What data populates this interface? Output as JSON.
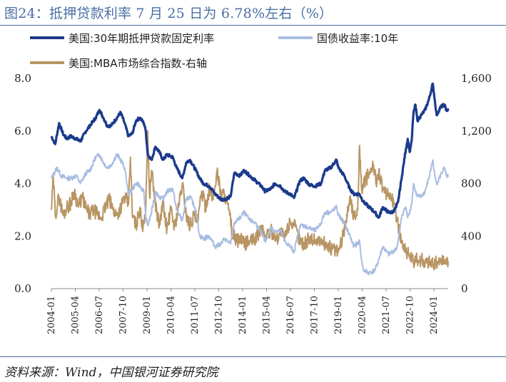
{
  "header": {
    "title": "图24：抵押贷款利率 7 月 25 日为 6.78%左右（%）"
  },
  "footer": {
    "source": "资料来源：Wind，中国银河证券研究院"
  },
  "colors": {
    "mortgage": "#1a3a8c",
    "treasury": "#a9bde2",
    "mba": "#b89563",
    "accent": "#4a6fa5"
  },
  "chart_data": {
    "type": "line",
    "title": "抵押贷款利率 7 月 25 日为 6.78%左右（%）",
    "x_ticks": [
      "2004-01",
      "2005-04",
      "2006-07",
      "2007-10",
      "2009-01",
      "2010-04",
      "2011-07",
      "2012-10",
      "2014-01",
      "2015-04",
      "2016-07",
      "2017-10",
      "2019-01",
      "2020-04",
      "2021-07",
      "2022-10",
      "2024-01"
    ],
    "x_range": [
      2004.0,
      2024.6
    ],
    "y_left": {
      "ticks": [
        "0.0",
        "2.0",
        "4.0",
        "6.0",
        "8.0"
      ],
      "range": [
        0,
        8
      ]
    },
    "y_right": {
      "ticks": [
        "0",
        "400",
        "800",
        "1,200",
        "1,600"
      ],
      "range": [
        0,
        1600
      ]
    },
    "legend": [
      "美国:30年期抵押贷款固定利率",
      "国债收益率:10年",
      "美国:MBA市场综合指数-右轴"
    ],
    "series": [
      {
        "name": "美国:30年期抵押贷款固定利率",
        "axis": "left",
        "points": [
          [
            2004.0,
            5.8
          ],
          [
            2004.2,
            5.5
          ],
          [
            2004.4,
            6.3
          ],
          [
            2004.6,
            5.9
          ],
          [
            2004.8,
            5.7
          ],
          [
            2005.0,
            5.8
          ],
          [
            2005.3,
            5.7
          ],
          [
            2005.5,
            5.6
          ],
          [
            2005.8,
            6.0
          ],
          [
            2006.0,
            6.2
          ],
          [
            2006.3,
            6.5
          ],
          [
            2006.5,
            6.8
          ],
          [
            2006.7,
            6.5
          ],
          [
            2006.9,
            6.2
          ],
          [
            2007.1,
            6.2
          ],
          [
            2007.4,
            6.5
          ],
          [
            2007.6,
            6.7
          ],
          [
            2007.8,
            6.3
          ],
          [
            2008.0,
            5.8
          ],
          [
            2008.2,
            5.9
          ],
          [
            2008.4,
            6.4
          ],
          [
            2008.6,
            6.5
          ],
          [
            2008.8,
            6.3
          ],
          [
            2008.9,
            6.0
          ],
          [
            2009.0,
            5.1
          ],
          [
            2009.2,
            4.9
          ],
          [
            2009.4,
            5.4
          ],
          [
            2009.6,
            5.2
          ],
          [
            2009.8,
            4.9
          ],
          [
            2010.0,
            5.1
          ],
          [
            2010.3,
            5.0
          ],
          [
            2010.5,
            4.6
          ],
          [
            2010.8,
            4.2
          ],
          [
            2011.0,
            4.8
          ],
          [
            2011.2,
            4.9
          ],
          [
            2011.5,
            4.5
          ],
          [
            2011.7,
            4.2
          ],
          [
            2011.9,
            4.0
          ],
          [
            2012.2,
            3.9
          ],
          [
            2012.5,
            3.6
          ],
          [
            2012.8,
            3.4
          ],
          [
            2013.0,
            3.4
          ],
          [
            2013.3,
            3.5
          ],
          [
            2013.5,
            4.4
          ],
          [
            2013.8,
            4.3
          ],
          [
            2014.0,
            4.5
          ],
          [
            2014.3,
            4.3
          ],
          [
            2014.6,
            4.1
          ],
          [
            2014.9,
            3.9
          ],
          [
            2015.1,
            3.7
          ],
          [
            2015.4,
            3.8
          ],
          [
            2015.6,
            4.0
          ],
          [
            2015.9,
            3.9
          ],
          [
            2016.1,
            3.7
          ],
          [
            2016.4,
            3.6
          ],
          [
            2016.6,
            3.45
          ],
          [
            2016.9,
            4.1
          ],
          [
            2017.1,
            4.2
          ],
          [
            2017.4,
            3.95
          ],
          [
            2017.7,
            3.9
          ],
          [
            2018.0,
            4.0
          ],
          [
            2018.2,
            4.5
          ],
          [
            2018.5,
            4.6
          ],
          [
            2018.8,
            4.9
          ],
          [
            2018.9,
            4.6
          ],
          [
            2019.2,
            4.3
          ],
          [
            2019.5,
            3.8
          ],
          [
            2019.7,
            3.6
          ],
          [
            2020.0,
            3.6
          ],
          [
            2020.2,
            3.3
          ],
          [
            2020.5,
            3.1
          ],
          [
            2020.8,
            2.9
          ],
          [
            2021.0,
            2.7
          ],
          [
            2021.2,
            3.1
          ],
          [
            2021.5,
            2.9
          ],
          [
            2021.7,
            2.9
          ],
          [
            2021.9,
            3.1
          ],
          [
            2022.0,
            3.3
          ],
          [
            2022.2,
            4.3
          ],
          [
            2022.4,
            5.3
          ],
          [
            2022.5,
            5.7
          ],
          [
            2022.6,
            5.2
          ],
          [
            2022.7,
            5.6
          ],
          [
            2022.8,
            6.7
          ],
          [
            2022.9,
            7.0
          ],
          [
            2023.0,
            6.4
          ],
          [
            2023.2,
            6.6
          ],
          [
            2023.4,
            6.8
          ],
          [
            2023.6,
            7.2
          ],
          [
            2023.8,
            7.8
          ],
          [
            2023.9,
            7.2
          ],
          [
            2024.0,
            6.6
          ],
          [
            2024.2,
            6.9
          ],
          [
            2024.4,
            7.0
          ],
          [
            2024.5,
            6.8
          ],
          [
            2024.6,
            6.78
          ]
        ]
      },
      {
        "name": "国债收益率:10年",
        "axis": "left",
        "points": [
          [
            2004.0,
            4.2
          ],
          [
            2004.3,
            4.6
          ],
          [
            2004.5,
            4.3
          ],
          [
            2004.8,
            4.2
          ],
          [
            2005.0,
            4.2
          ],
          [
            2005.3,
            4.3
          ],
          [
            2005.5,
            4.0
          ],
          [
            2005.8,
            4.4
          ],
          [
            2006.0,
            4.5
          ],
          [
            2006.3,
            5.0
          ],
          [
            2006.5,
            5.1
          ],
          [
            2006.7,
            4.8
          ],
          [
            2006.9,
            4.6
          ],
          [
            2007.1,
            4.7
          ],
          [
            2007.4,
            5.1
          ],
          [
            2007.6,
            4.9
          ],
          [
            2007.8,
            4.6
          ],
          [
            2008.0,
            3.6
          ],
          [
            2008.2,
            3.8
          ],
          [
            2008.4,
            4.0
          ],
          [
            2008.6,
            3.9
          ],
          [
            2008.8,
            3.7
          ],
          [
            2008.9,
            2.7
          ],
          [
            2009.0,
            2.4
          ],
          [
            2009.2,
            2.9
          ],
          [
            2009.4,
            3.7
          ],
          [
            2009.6,
            3.5
          ],
          [
            2009.8,
            3.4
          ],
          [
            2010.0,
            3.7
          ],
          [
            2010.3,
            3.8
          ],
          [
            2010.5,
            3.0
          ],
          [
            2010.8,
            2.6
          ],
          [
            2011.0,
            3.4
          ],
          [
            2011.2,
            3.5
          ],
          [
            2011.5,
            3.0
          ],
          [
            2011.7,
            2.0
          ],
          [
            2011.9,
            1.9
          ],
          [
            2012.2,
            2.0
          ],
          [
            2012.5,
            1.6
          ],
          [
            2012.8,
            1.7
          ],
          [
            2013.0,
            1.9
          ],
          [
            2013.3,
            1.7
          ],
          [
            2013.5,
            2.5
          ],
          [
            2013.8,
            2.7
          ],
          [
            2014.0,
            2.9
          ],
          [
            2014.3,
            2.6
          ],
          [
            2014.6,
            2.5
          ],
          [
            2014.9,
            2.1
          ],
          [
            2015.1,
            1.8
          ],
          [
            2015.4,
            2.3
          ],
          [
            2015.6,
            2.2
          ],
          [
            2015.9,
            2.2
          ],
          [
            2016.1,
            1.8
          ],
          [
            2016.4,
            1.6
          ],
          [
            2016.6,
            1.4
          ],
          [
            2016.9,
            2.4
          ],
          [
            2017.1,
            2.4
          ],
          [
            2017.4,
            2.3
          ],
          [
            2017.7,
            2.2
          ],
          [
            2018.0,
            2.5
          ],
          [
            2018.2,
            2.9
          ],
          [
            2018.5,
            2.9
          ],
          [
            2018.8,
            3.1
          ],
          [
            2018.9,
            2.8
          ],
          [
            2019.2,
            2.5
          ],
          [
            2019.5,
            2.0
          ],
          [
            2019.7,
            1.6
          ],
          [
            2020.0,
            1.8
          ],
          [
            2020.1,
            1.1
          ],
          [
            2020.2,
            0.7
          ],
          [
            2020.5,
            0.6
          ],
          [
            2020.8,
            0.7
          ],
          [
            2021.0,
            1.1
          ],
          [
            2021.2,
            1.6
          ],
          [
            2021.5,
            1.3
          ],
          [
            2021.7,
            1.4
          ],
          [
            2021.9,
            1.5
          ],
          [
            2022.0,
            1.8
          ],
          [
            2022.2,
            2.8
          ],
          [
            2022.4,
            3.1
          ],
          [
            2022.5,
            2.7
          ],
          [
            2022.7,
            3.2
          ],
          [
            2022.8,
            4.0
          ],
          [
            2022.9,
            3.7
          ],
          [
            2023.0,
            3.5
          ],
          [
            2023.2,
            3.5
          ],
          [
            2023.4,
            3.7
          ],
          [
            2023.6,
            4.2
          ],
          [
            2023.8,
            4.9
          ],
          [
            2023.9,
            4.3
          ],
          [
            2024.0,
            4.0
          ],
          [
            2024.2,
            4.3
          ],
          [
            2024.4,
            4.6
          ],
          [
            2024.5,
            4.3
          ],
          [
            2024.6,
            4.25
          ]
        ]
      },
      {
        "name": "美国:MBA市场综合指数-右轴",
        "axis": "right",
        "points": [
          [
            2004.0,
            600
          ],
          [
            2004.1,
            850
          ],
          [
            2004.2,
            560
          ],
          [
            2004.4,
            700
          ],
          [
            2004.6,
            560
          ],
          [
            2004.8,
            620
          ],
          [
            2005.0,
            650
          ],
          [
            2005.2,
            740
          ],
          [
            2005.4,
            620
          ],
          [
            2005.6,
            700
          ],
          [
            2005.8,
            610
          ],
          [
            2006.0,
            560
          ],
          [
            2006.2,
            600
          ],
          [
            2006.4,
            560
          ],
          [
            2006.6,
            540
          ],
          [
            2006.8,
            620
          ],
          [
            2007.0,
            680
          ],
          [
            2007.2,
            600
          ],
          [
            2007.4,
            560
          ],
          [
            2007.6,
            620
          ],
          [
            2007.8,
            700
          ],
          [
            2008.0,
            640
          ],
          [
            2008.1,
            1000
          ],
          [
            2008.2,
            560
          ],
          [
            2008.4,
            480
          ],
          [
            2008.6,
            620
          ],
          [
            2008.7,
            460
          ],
          [
            2008.9,
            600
          ],
          [
            2009.0,
            1200
          ],
          [
            2009.1,
            700
          ],
          [
            2009.2,
            900
          ],
          [
            2009.4,
            650
          ],
          [
            2009.6,
            480
          ],
          [
            2009.8,
            650
          ],
          [
            2010.0,
            450
          ],
          [
            2010.2,
            600
          ],
          [
            2010.4,
            470
          ],
          [
            2010.6,
            620
          ],
          [
            2010.8,
            800
          ],
          [
            2011.0,
            560
          ],
          [
            2011.2,
            480
          ],
          [
            2011.4,
            560
          ],
          [
            2011.6,
            500
          ],
          [
            2011.8,
            740
          ],
          [
            2012.0,
            620
          ],
          [
            2012.2,
            760
          ],
          [
            2012.4,
            680
          ],
          [
            2012.6,
            900
          ],
          [
            2012.8,
            720
          ],
          [
            2013.0,
            720
          ],
          [
            2013.2,
            600
          ],
          [
            2013.4,
            420
          ],
          [
            2013.6,
            360
          ],
          [
            2013.8,
            380
          ],
          [
            2014.0,
            340
          ],
          [
            2014.3,
            360
          ],
          [
            2014.6,
            380
          ],
          [
            2014.9,
            460
          ],
          [
            2015.1,
            400
          ],
          [
            2015.4,
            440
          ],
          [
            2015.7,
            380
          ],
          [
            2015.9,
            440
          ],
          [
            2016.1,
            380
          ],
          [
            2016.4,
            520
          ],
          [
            2016.6,
            480
          ],
          [
            2016.9,
            370
          ],
          [
            2017.1,
            340
          ],
          [
            2017.4,
            380
          ],
          [
            2017.7,
            370
          ],
          [
            2018.0,
            360
          ],
          [
            2018.3,
            330
          ],
          [
            2018.6,
            300
          ],
          [
            2018.9,
            280
          ],
          [
            2019.1,
            380
          ],
          [
            2019.3,
            520
          ],
          [
            2019.5,
            700
          ],
          [
            2019.7,
            540
          ],
          [
            2019.9,
            600
          ],
          [
            2020.0,
            1090
          ],
          [
            2020.1,
            760
          ],
          [
            2020.3,
            820
          ],
          [
            2020.5,
            880
          ],
          [
            2020.7,
            920
          ],
          [
            2020.9,
            820
          ],
          [
            2021.0,
            900
          ],
          [
            2021.2,
            760
          ],
          [
            2021.4,
            700
          ],
          [
            2021.6,
            720
          ],
          [
            2021.8,
            640
          ],
          [
            2022.0,
            480
          ],
          [
            2022.2,
            360
          ],
          [
            2022.4,
            300
          ],
          [
            2022.6,
            240
          ],
          [
            2022.8,
            200
          ],
          [
            2023.0,
            220
          ],
          [
            2023.2,
            220
          ],
          [
            2023.4,
            200
          ],
          [
            2023.6,
            210
          ],
          [
            2023.8,
            190
          ],
          [
            2024.0,
            200
          ],
          [
            2024.2,
            210
          ],
          [
            2024.4,
            215
          ],
          [
            2024.6,
            210
          ]
        ]
      }
    ]
  }
}
